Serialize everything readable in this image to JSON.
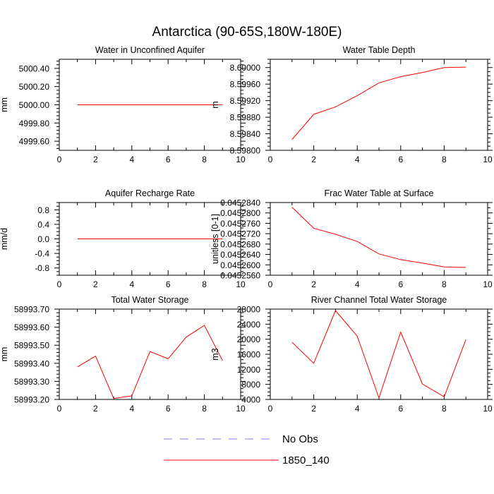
{
  "title": "Antarctica (90-65S,180W-180E)",
  "colors": {
    "model": "#ff0000",
    "obs": "#7f7fff",
    "axis": "#000000"
  },
  "legend": [
    {
      "label": "No Obs",
      "style": "dashed",
      "color": "#7f7fff"
    },
    {
      "label": "1850_140",
      "style": "solid",
      "color": "#ff0000"
    }
  ],
  "chart_data": [
    {
      "type": "line",
      "title": "Water in Unconfined Aquifer",
      "ylabel": "mm",
      "xlim": [
        0,
        10
      ],
      "ylim": [
        4999.5,
        5000.5
      ],
      "xticks": [
        0,
        2,
        4,
        6,
        8,
        10
      ],
      "xticklabels": [
        "0",
        "2",
        "4",
        "6",
        "8",
        "10"
      ],
      "yticks": [
        4999.6,
        4999.8,
        5000.0,
        5000.2,
        5000.4
      ],
      "yticklabels": [
        "4999.60",
        "4999.80",
        "5000.00",
        "5000.20",
        "5000.40"
      ],
      "yminor": 4,
      "x": [
        1,
        2,
        3,
        4,
        5,
        6,
        7,
        8,
        9
      ],
      "series": [
        {
          "name": "1850_140",
          "values": [
            5000,
            5000,
            5000,
            5000,
            5000,
            5000,
            5000,
            5000,
            5000
          ]
        }
      ]
    },
    {
      "type": "line",
      "title": "Water Table Depth",
      "ylabel": "m",
      "xlim": [
        0,
        10
      ],
      "ylim": [
        8.598,
        8.6002
      ],
      "xticks": [
        0,
        2,
        4,
        6,
        8,
        10
      ],
      "xticklabels": [
        "0",
        "2",
        "4",
        "6",
        "8",
        "10"
      ],
      "yticks": [
        8.598,
        8.5984,
        8.5988,
        8.5992,
        8.5996,
        8.6
      ],
      "yticklabels": [
        "8.59800",
        "8.59840",
        "8.59880",
        "8.59920",
        "8.59960",
        "8.60000"
      ],
      "yminor": 3,
      "x": [
        1,
        2,
        3,
        4,
        5,
        6,
        7,
        8,
        9
      ],
      "series": [
        {
          "name": "1850_140",
          "values": [
            8.59826,
            8.59887,
            8.59905,
            8.59932,
            8.59963,
            8.59978,
            8.59988,
            8.6,
            8.60001
          ]
        }
      ]
    },
    {
      "type": "line",
      "title": "Aquifer Recharge Rate",
      "ylabel": "mm/d",
      "xlim": [
        0,
        10
      ],
      "ylim": [
        -1.0,
        1.0
      ],
      "xticks": [
        0,
        2,
        4,
        6,
        8,
        10
      ],
      "xticklabels": [
        "0",
        "2",
        "4",
        "6",
        "8",
        "10"
      ],
      "yticks": [
        -0.8,
        -0.4,
        0.0,
        0.4,
        0.8
      ],
      "yticklabels": [
        "-0.8",
        "-0.4",
        "0.0",
        "0.4",
        "0.8"
      ],
      "yminor": 3,
      "x": [
        1,
        2,
        3,
        4,
        5,
        6,
        7,
        8,
        9
      ],
      "series": [
        {
          "name": "1850_140",
          "values": [
            0,
            0,
            0,
            0,
            0,
            0,
            0,
            0,
            0
          ]
        }
      ]
    },
    {
      "type": "line",
      "title": "Frac Water Table at Surface",
      "ylabel": "unitless [0-1]",
      "xlim": [
        0,
        10
      ],
      "ylim": [
        0.045256,
        0.045284
      ],
      "xticks": [
        0,
        2,
        4,
        6,
        8,
        10
      ],
      "xticklabels": [
        "0",
        "2",
        "4",
        "6",
        "8",
        "10"
      ],
      "yticks": [
        0.045256,
        0.04526,
        0.045264,
        0.045268,
        0.045272,
        0.045276,
        0.04528,
        0.045284
      ],
      "yticklabels": [
        "0.0452560",
        "0.0452600",
        "0.0452640",
        "0.0452680",
        "0.0452720",
        "0.0452760",
        "0.0452800",
        "0.0452840"
      ],
      "yminor": 1,
      "x": [
        1,
        2,
        3,
        4,
        5,
        6,
        7,
        8,
        9
      ],
      "series": [
        {
          "name": "1850_140",
          "values": [
            0.0452822,
            0.0452741,
            0.0452718,
            0.045269,
            0.0452642,
            0.045262,
            0.0452607,
            0.0452592,
            0.045259
          ]
        }
      ]
    },
    {
      "type": "line",
      "title": "Total Water Storage",
      "ylabel": "mm",
      "xlim": [
        0,
        10
      ],
      "ylim": [
        58993.2,
        58993.7
      ],
      "xticks": [
        0,
        2,
        4,
        6,
        8,
        10
      ],
      "xticklabels": [
        "0",
        "2",
        "4",
        "6",
        "8",
        "10"
      ],
      "yticks": [
        58993.2,
        58993.3,
        58993.4,
        58993.5,
        58993.6,
        58993.7
      ],
      "yticklabels": [
        "58993.20",
        "58993.30",
        "58993.40",
        "58993.50",
        "58993.60",
        "58993.70"
      ],
      "yminor": 4,
      "x": [
        1,
        2,
        3,
        4,
        5,
        6,
        7,
        8,
        9
      ],
      "series": [
        {
          "name": "1850_140",
          "values": [
            58993.38,
            58993.44,
            58993.205,
            58993.22,
            58993.465,
            58993.425,
            58993.545,
            58993.61,
            58993.415
          ]
        }
      ]
    },
    {
      "type": "line",
      "title": "River Channel Total Water Storage",
      "ylabel": "m3",
      "xlim": [
        0,
        10
      ],
      "ylim": [
        4000,
        28000
      ],
      "xticks": [
        0,
        2,
        4,
        6,
        8,
        10
      ],
      "xticklabels": [
        "0",
        "2",
        "4",
        "6",
        "8",
        "10"
      ],
      "yticks": [
        4000,
        8000,
        12000,
        16000,
        20000,
        24000,
        28000
      ],
      "yticklabels": [
        "4000",
        "8000",
        "12000",
        "16000",
        "20000",
        "24000",
        "28000"
      ],
      "yminor": 3,
      "x": [
        1,
        2,
        3,
        4,
        5,
        6,
        7,
        8,
        9
      ],
      "series": [
        {
          "name": "1850_140",
          "values": [
            19200,
            13600,
            27600,
            20800,
            4400,
            21900,
            8100,
            4700,
            19900
          ]
        }
      ]
    }
  ]
}
